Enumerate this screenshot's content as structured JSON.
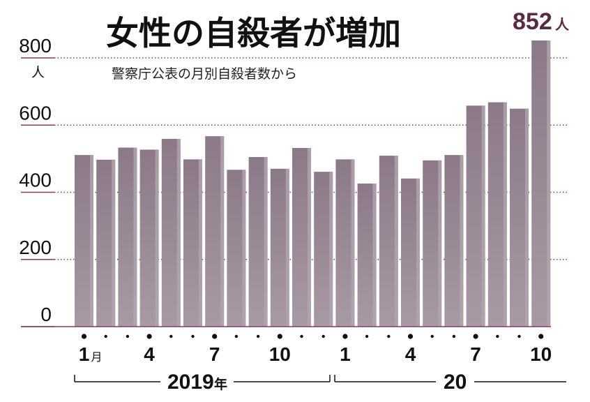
{
  "chart_data": {
    "type": "bar",
    "title": "女性の自殺者が増加",
    "subtitle": "警察庁公表の月別自殺者数から",
    "ylabel_unit": "人",
    "ylim": [
      0,
      852
    ],
    "yticks": [
      "0",
      "200",
      "400",
      "600",
      "800"
    ],
    "grid": true,
    "x": [
      "2019-01",
      "2019-02",
      "2019-03",
      "2019-04",
      "2019-05",
      "2019-06",
      "2019-07",
      "2019-08",
      "2019-09",
      "2019-10",
      "2019-11",
      "2019-12",
      "2020-01",
      "2020-02",
      "2020-03",
      "2020-04",
      "2020-05",
      "2020-06",
      "2020-07",
      "2020-08",
      "2020-09",
      "2020-10"
    ],
    "values": [
      511,
      497,
      533,
      527,
      559,
      498,
      567,
      467,
      505,
      470,
      532,
      461,
      498,
      426,
      509,
      441,
      495,
      511,
      658,
      668,
      649,
      852
    ],
    "xtick_labels": [
      {
        "index": 0,
        "text": "1",
        "unit": "月"
      },
      {
        "index": 3,
        "text": "4"
      },
      {
        "index": 6,
        "text": "7"
      },
      {
        "index": 9,
        "text": "10"
      },
      {
        "index": 12,
        "text": "1"
      },
      {
        "index": 15,
        "text": "4"
      },
      {
        "index": 18,
        "text": "7"
      },
      {
        "index": 21,
        "text": "10"
      }
    ],
    "year_labels": [
      {
        "text": "2019",
        "unit": "年"
      },
      {
        "text": "20",
        "unit": ""
      }
    ],
    "annotation": {
      "text": "852",
      "unit": "人"
    },
    "colors": {
      "bar": "#8f7d8a",
      "bar_light": "#b3a5af",
      "grid": "#8a3a5a",
      "accent": "#5a2a44"
    }
  }
}
